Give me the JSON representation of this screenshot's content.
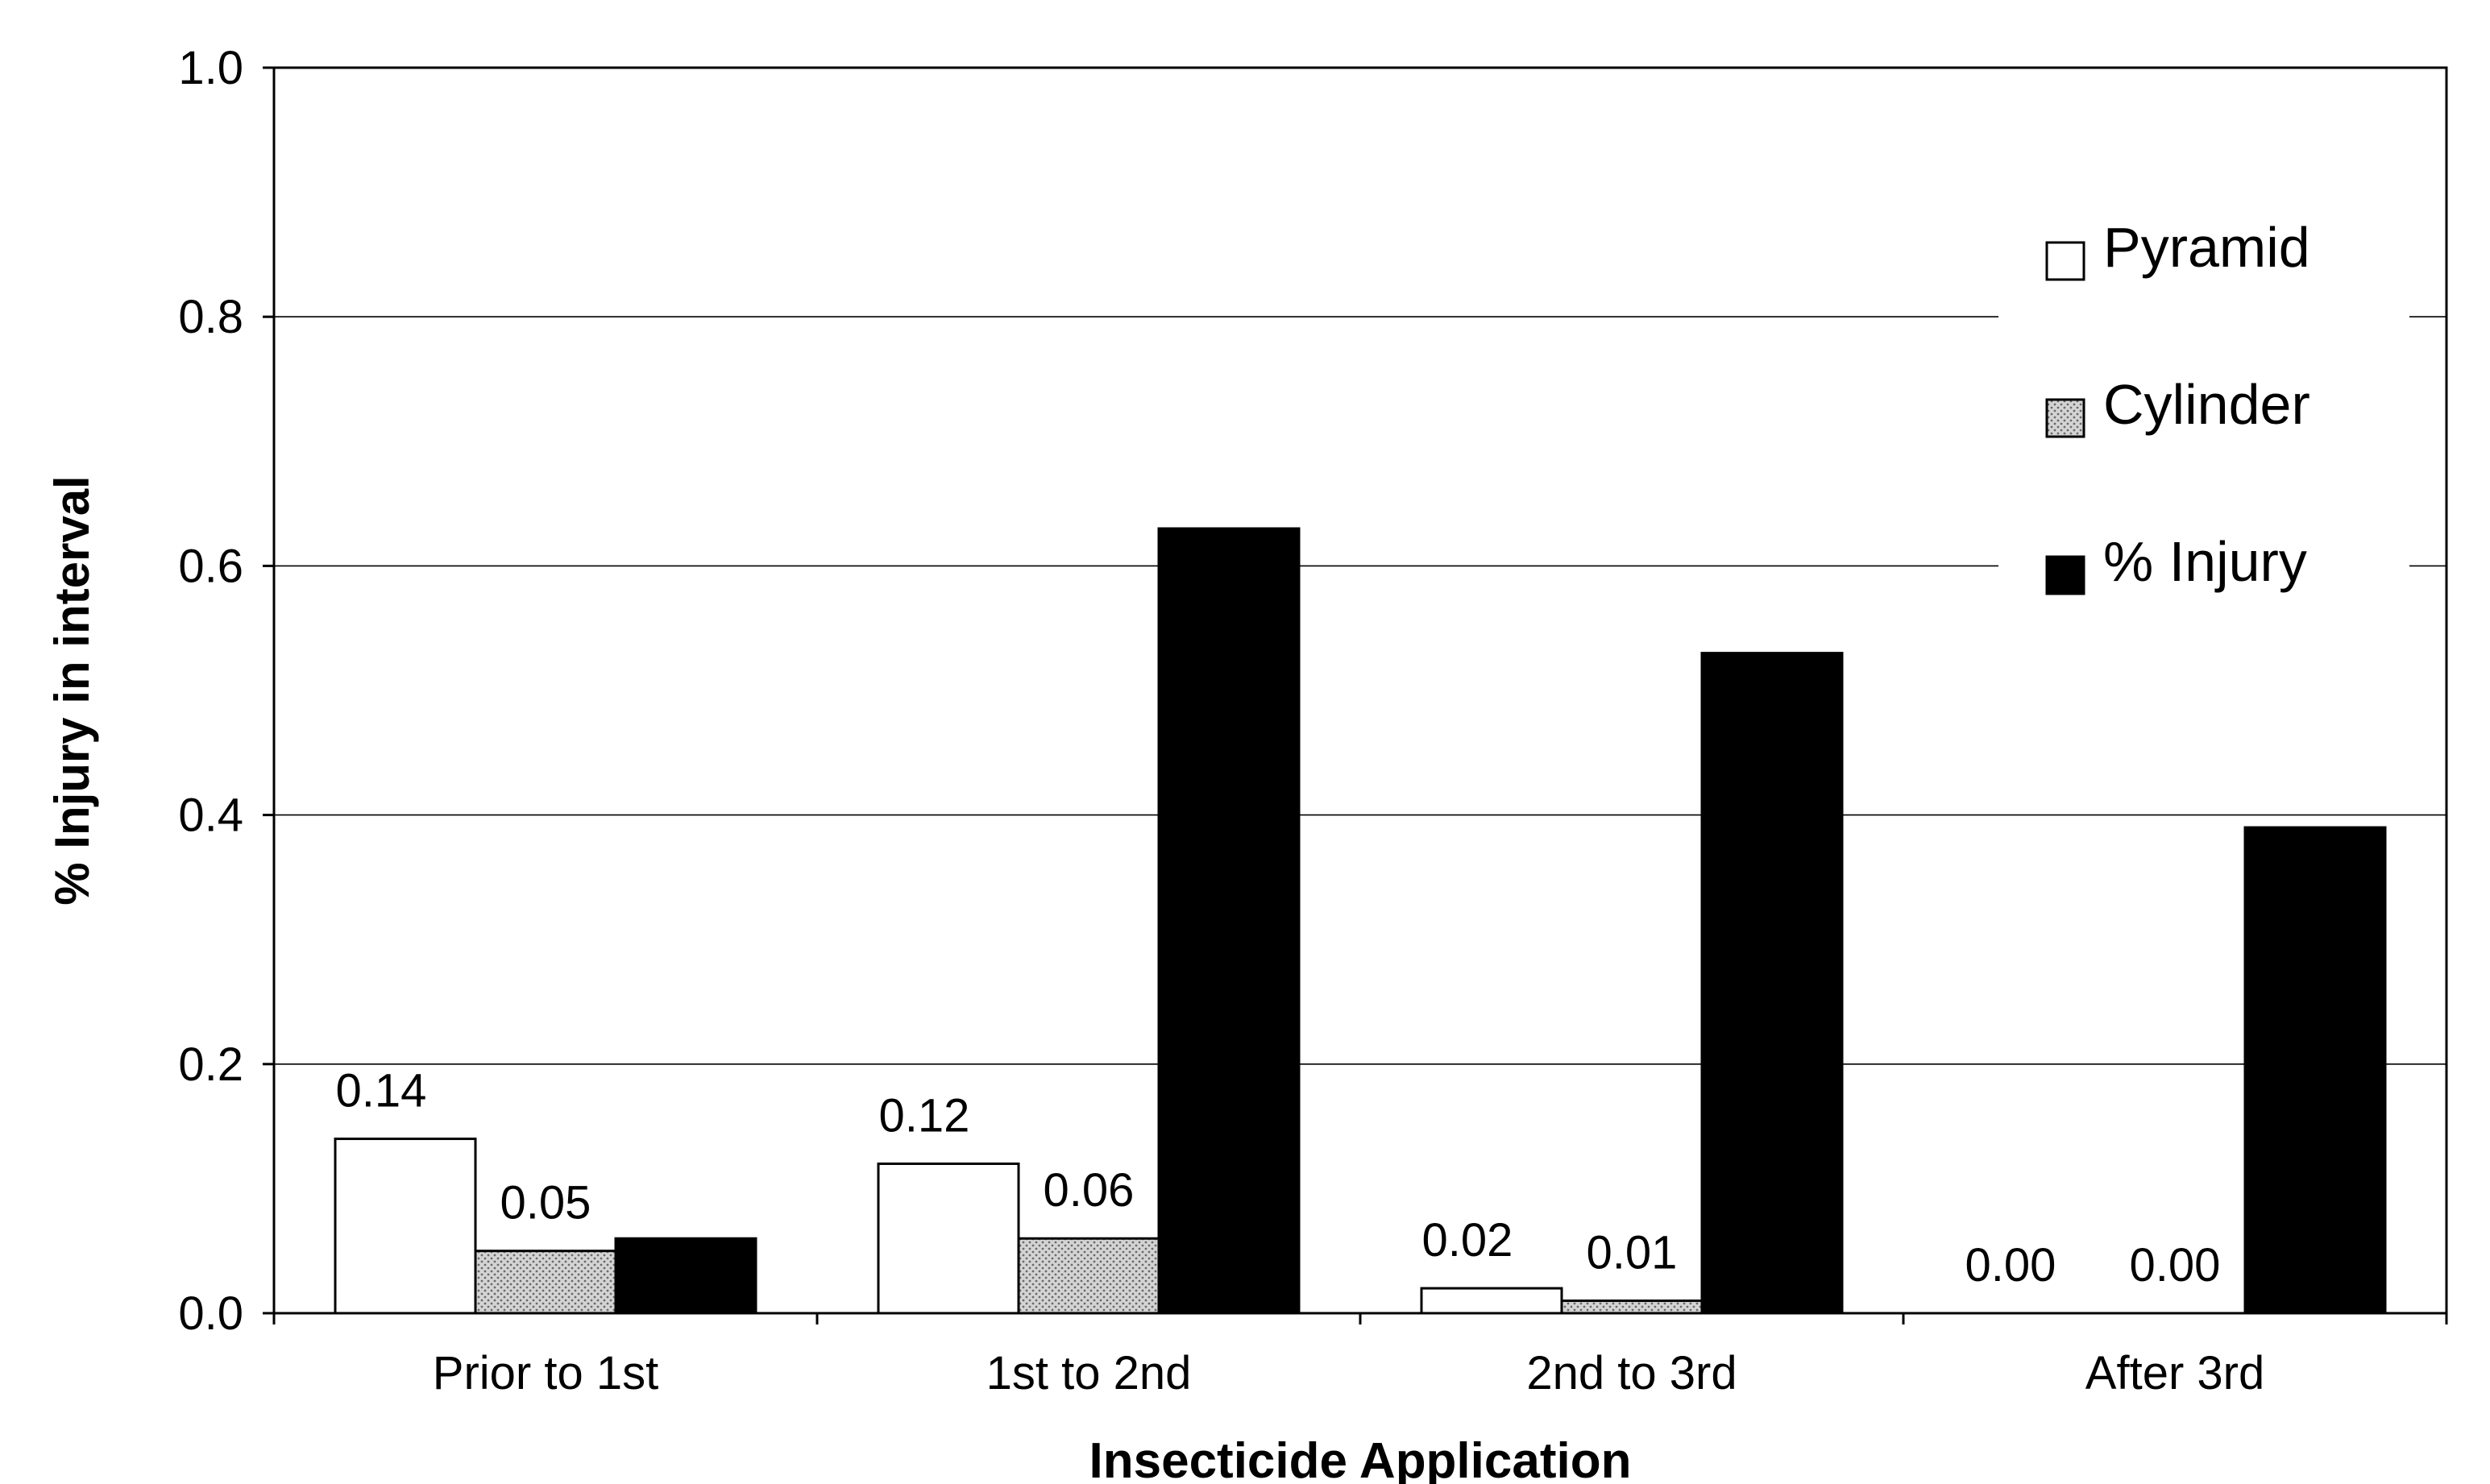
{
  "chart_data": {
    "type": "bar",
    "title": "",
    "xlabel": "Insecticide Application",
    "ylabel": "% Injury in interval",
    "ylim": [
      0,
      1.0
    ],
    "yticks": [
      0.0,
      0.2,
      0.4,
      0.6,
      0.8,
      1.0
    ],
    "ytick_labels": [
      "0.0",
      "0.2",
      "0.4",
      "0.6",
      "0.8",
      "1.0"
    ],
    "grid": true,
    "legend_position": "top-right",
    "categories": [
      "Prior to 1st",
      "1st to 2nd",
      "2nd to 3rd",
      "After 3rd"
    ],
    "series": [
      {
        "name": "Pyramid",
        "color": "#ffffff",
        "pattern": "none",
        "values": [
          0.14,
          0.12,
          0.02,
          0.0
        ],
        "labels": [
          "0.14",
          "0.12",
          "0.02",
          "0.00"
        ]
      },
      {
        "name": "Cylinder",
        "color": "#c8c8c8",
        "pattern": "stipple",
        "values": [
          0.05,
          0.06,
          0.01,
          0.0
        ],
        "labels": [
          "0.05",
          "0.06",
          "0.01",
          "0.00"
        ]
      },
      {
        "name": "% Injury",
        "color": "#000000",
        "pattern": "none",
        "values": [
          0.06,
          0.63,
          0.53,
          0.39
        ]
      }
    ]
  }
}
